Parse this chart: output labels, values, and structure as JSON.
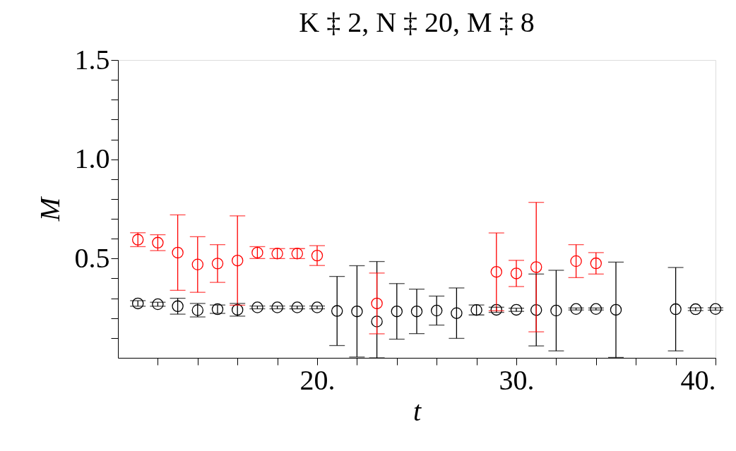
{
  "chart_data": {
    "type": "scatter",
    "title": "K ‡ 2, N ‡ 20, M ‡ 8",
    "xlabel": "t",
    "ylabel": "M",
    "xlim": [
      10,
      40
    ],
    "ylim": [
      0,
      1.5
    ],
    "xticks": [
      {
        "value": 12,
        "label": null
      },
      {
        "value": 14,
        "label": null
      },
      {
        "value": 16,
        "label": null
      },
      {
        "value": 18,
        "label": null
      },
      {
        "value": 20,
        "label": "20."
      },
      {
        "value": 22,
        "label": null
      },
      {
        "value": 24,
        "label": null
      },
      {
        "value": 26,
        "label": null
      },
      {
        "value": 28,
        "label": null
      },
      {
        "value": 30,
        "label": "30."
      },
      {
        "value": 32,
        "label": null
      },
      {
        "value": 34,
        "label": null
      },
      {
        "value": 36,
        "label": null
      },
      {
        "value": 38,
        "label": null
      },
      {
        "value": 40,
        "label": "40."
      }
    ],
    "yticks": [
      {
        "value": 0.1,
        "label": null
      },
      {
        "value": 0.2,
        "label": null
      },
      {
        "value": 0.3,
        "label": null
      },
      {
        "value": 0.4,
        "label": null
      },
      0.5,
      {
        "value": 0.6,
        "label": null
      },
      {
        "value": 0.7,
        "label": null
      },
      {
        "value": 0.8,
        "label": null
      },
      {
        "value": 0.9,
        "label": null
      },
      {
        "value": 1.0,
        "label": "1.0"
      },
      {
        "value": 1.1,
        "label": null
      },
      {
        "value": 1.2,
        "label": null
      },
      {
        "value": 1.3,
        "label": null
      },
      {
        "value": 1.4,
        "label": null
      },
      1.5
    ],
    "grid": false,
    "marker": "circle",
    "series": [
      {
        "color": "#000000",
        "x": [
          11,
          12,
          13,
          14,
          15,
          16,
          17,
          18,
          19,
          20,
          21,
          22,
          23,
          24,
          25,
          26,
          27,
          28,
          29,
          30,
          31,
          32,
          33,
          34,
          35,
          38,
          39,
          40
        ],
        "values": [
          0.274,
          0.27,
          0.26,
          0.24,
          0.245,
          0.242,
          0.254,
          0.254,
          0.254,
          0.254,
          0.236,
          0.234,
          0.183,
          0.234,
          0.234,
          0.238,
          0.225,
          0.241,
          0.242,
          0.242,
          0.241,
          0.238,
          0.246,
          0.246,
          0.242,
          0.245,
          0.245,
          0.246
        ],
        "errors": [
          0.014,
          0.01,
          0.04,
          0.034,
          0.021,
          0.032,
          0.007,
          0.007,
          0.007,
          0.007,
          0.174,
          0.23,
          [
            0,
            0.485
          ],
          0.14,
          0.112,
          0.073,
          0.127,
          0.025,
          0.013,
          0.008,
          0.181,
          0.203,
          0.005,
          0.005,
          0.24,
          0.21,
          0.007,
          0.006
        ]
      },
      {
        "color": "#ff0000",
        "x": [
          11,
          12,
          13,
          14,
          15,
          16,
          17,
          18,
          19,
          20,
          23,
          29,
          30,
          31,
          33,
          34
        ],
        "values": [
          0.595,
          0.58,
          0.53,
          0.47,
          0.475,
          0.49,
          0.53,
          0.525,
          0.525,
          0.515,
          0.274,
          0.433,
          0.425,
          0.457,
          0.487,
          0.476
        ],
        "errors": [
          0.035,
          0.04,
          0.19,
          0.14,
          0.095,
          0.225,
          0.03,
          0.025,
          0.025,
          0.05,
          0.153,
          0.196,
          0.066,
          0.326,
          0.083,
          0.054
        ]
      }
    ]
  }
}
